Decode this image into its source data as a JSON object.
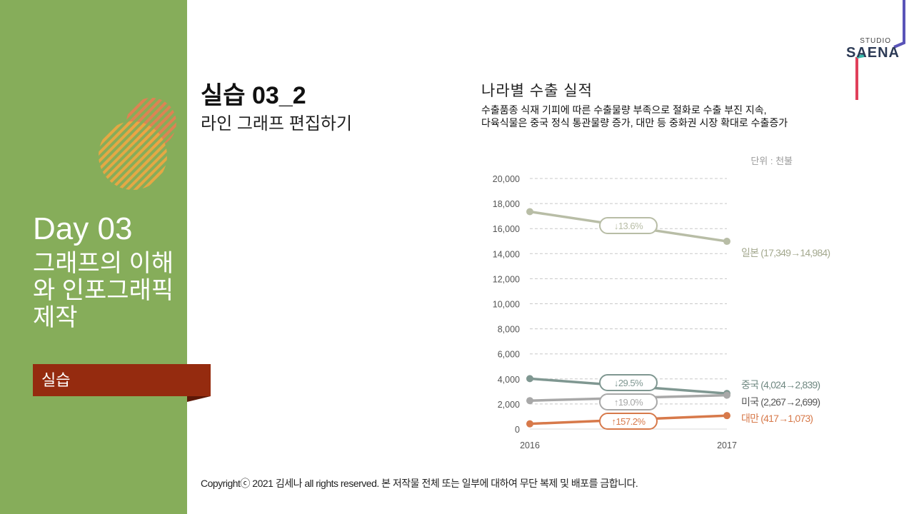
{
  "sidebar": {
    "day_title": "Day 03",
    "day_subtitle": "그래프의 이해와 인포그래픽 제작",
    "section_label": "실습"
  },
  "lesson": {
    "title": "실습 03_2",
    "subtitle": "라인 그래프 편집하기"
  },
  "brand": {
    "studio": "STUDIO",
    "name": "SAENA"
  },
  "footer": {
    "copyright": "Copyrightⓒ 2021 김세나 all rights reserved. 본 저작물 전체 또는 일부에 대하여 무단 복제 및 배포를 금합니다."
  },
  "colors": {
    "sidebar": "#86ad5a",
    "ribbon": "#952b0f",
    "japan": "#b8bda6",
    "china": "#7f9791",
    "usa": "#a8a8a8",
    "taiwan": "#d7794a"
  },
  "chart_data": {
    "type": "line",
    "title": "나라별 수출 실적",
    "description": [
      "수출품종 식재 기피에 따른 수출물량 부족으로 절화로 수출 부진 지속,",
      "다육식물은 중국 정식 통관물량 증가, 대만 등 중화권 시장 확대로 수출증가"
    ],
    "unit": "단위 : 천불",
    "x": [
      "2016",
      "2017"
    ],
    "ylim": [
      0,
      20000
    ],
    "yticks": [
      "0",
      "2,000",
      "4,000",
      "6,000",
      "8,000",
      "10,000",
      "12,000",
      "14,000",
      "16,000",
      "18,000",
      "20,000"
    ],
    "ytick_values": [
      0,
      2000,
      4000,
      6000,
      8000,
      10000,
      12000,
      14000,
      16000,
      18000,
      20000
    ],
    "grid": true,
    "series": [
      {
        "name": "일본",
        "values": [
          17349,
          14984
        ],
        "legend": "일본 (17,349→14,984)",
        "change": "↓13.6%",
        "color": "#b8bda6",
        "text_color": "#a4a98f"
      },
      {
        "name": "중국",
        "values": [
          4024,
          2839
        ],
        "legend": "중국 (4,024→2,839)",
        "change": "↓29.5%",
        "color": "#7f9791",
        "text_color": "#6f8881"
      },
      {
        "name": "미국",
        "values": [
          2267,
          2699
        ],
        "legend": "미국 (2,267→2,699)",
        "change": "↑19.0%",
        "color": "#a8a8a8",
        "text_color": "#555555"
      },
      {
        "name": "대만",
        "values": [
          417,
          1073
        ],
        "legend": "대만 (417→1,073)",
        "change": "↑157.2%",
        "color": "#d7794a",
        "text_color": "#d7794a"
      }
    ]
  }
}
